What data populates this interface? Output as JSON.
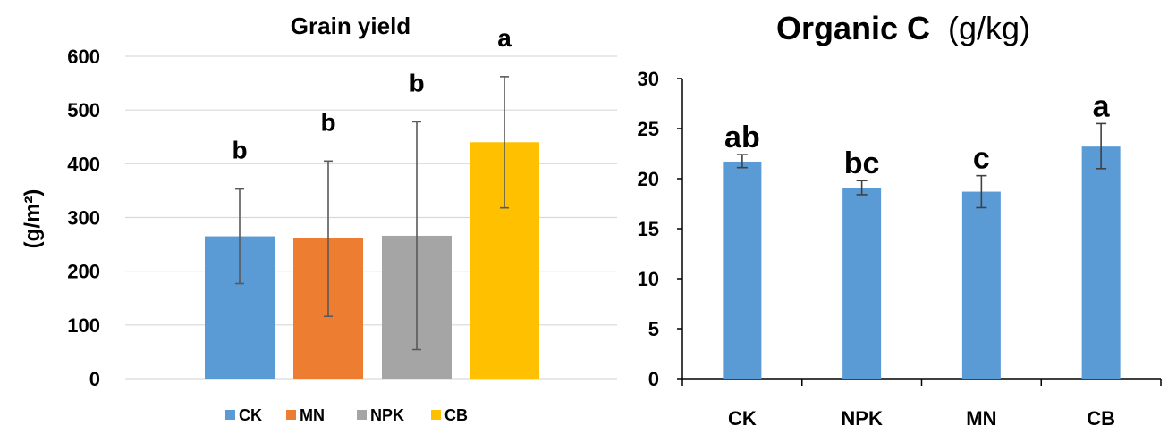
{
  "chart_data": [
    {
      "type": "bar",
      "title": "Grain yield",
      "ylabel": "(g/m²)",
      "ylim": [
        0,
        600
      ],
      "yticks": [
        0,
        100,
        200,
        300,
        400,
        500,
        600
      ],
      "grid": true,
      "legend_position": "bottom",
      "series": [
        {
          "name": "CK",
          "value": 265,
          "err_low": 177,
          "err_high": 353,
          "letter": "b",
          "color": "#5b9bd5"
        },
        {
          "name": "MN",
          "value": 261,
          "err_low": 116,
          "err_high": 405,
          "letter": "b",
          "color": "#ed7d31"
        },
        {
          "name": "NPK",
          "value": 266,
          "err_low": 54,
          "err_high": 478,
          "letter": "b",
          "color": "#a5a5a5"
        },
        {
          "name": "CB",
          "value": 440,
          "err_low": 318,
          "err_high": 562,
          "letter": "a",
          "color": "#ffc000"
        }
      ]
    },
    {
      "type": "bar",
      "title": "Organic C",
      "title_unit": "(g/kg)",
      "ylim": [
        0,
        30
      ],
      "yticks": [
        0,
        5,
        10,
        15,
        20,
        25,
        30
      ],
      "grid": false,
      "categories": [
        "CK",
        "NPK",
        "MN",
        "CB"
      ],
      "values": [
        21.7,
        19.1,
        18.7,
        23.2
      ],
      "err_low": [
        21.1,
        18.4,
        17.1,
        21.0
      ],
      "err_high": [
        22.4,
        19.8,
        20.3,
        25.5
      ],
      "letters": [
        "ab",
        "bc",
        "c",
        "a"
      ],
      "color": "#5b9bd5"
    }
  ]
}
